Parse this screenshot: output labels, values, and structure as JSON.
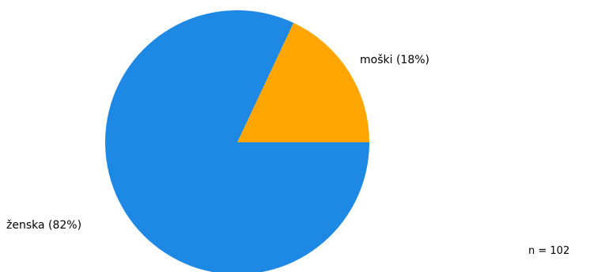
{
  "chart_data": {
    "type": "pie",
    "slices": [
      {
        "label": "moški (18%)",
        "value": 18,
        "color": "#FFA500"
      },
      {
        "label": "ženska (82%)",
        "value": 82,
        "color": "#1E88E5"
      }
    ]
  },
  "footer": {
    "n_label": "n = 102"
  }
}
